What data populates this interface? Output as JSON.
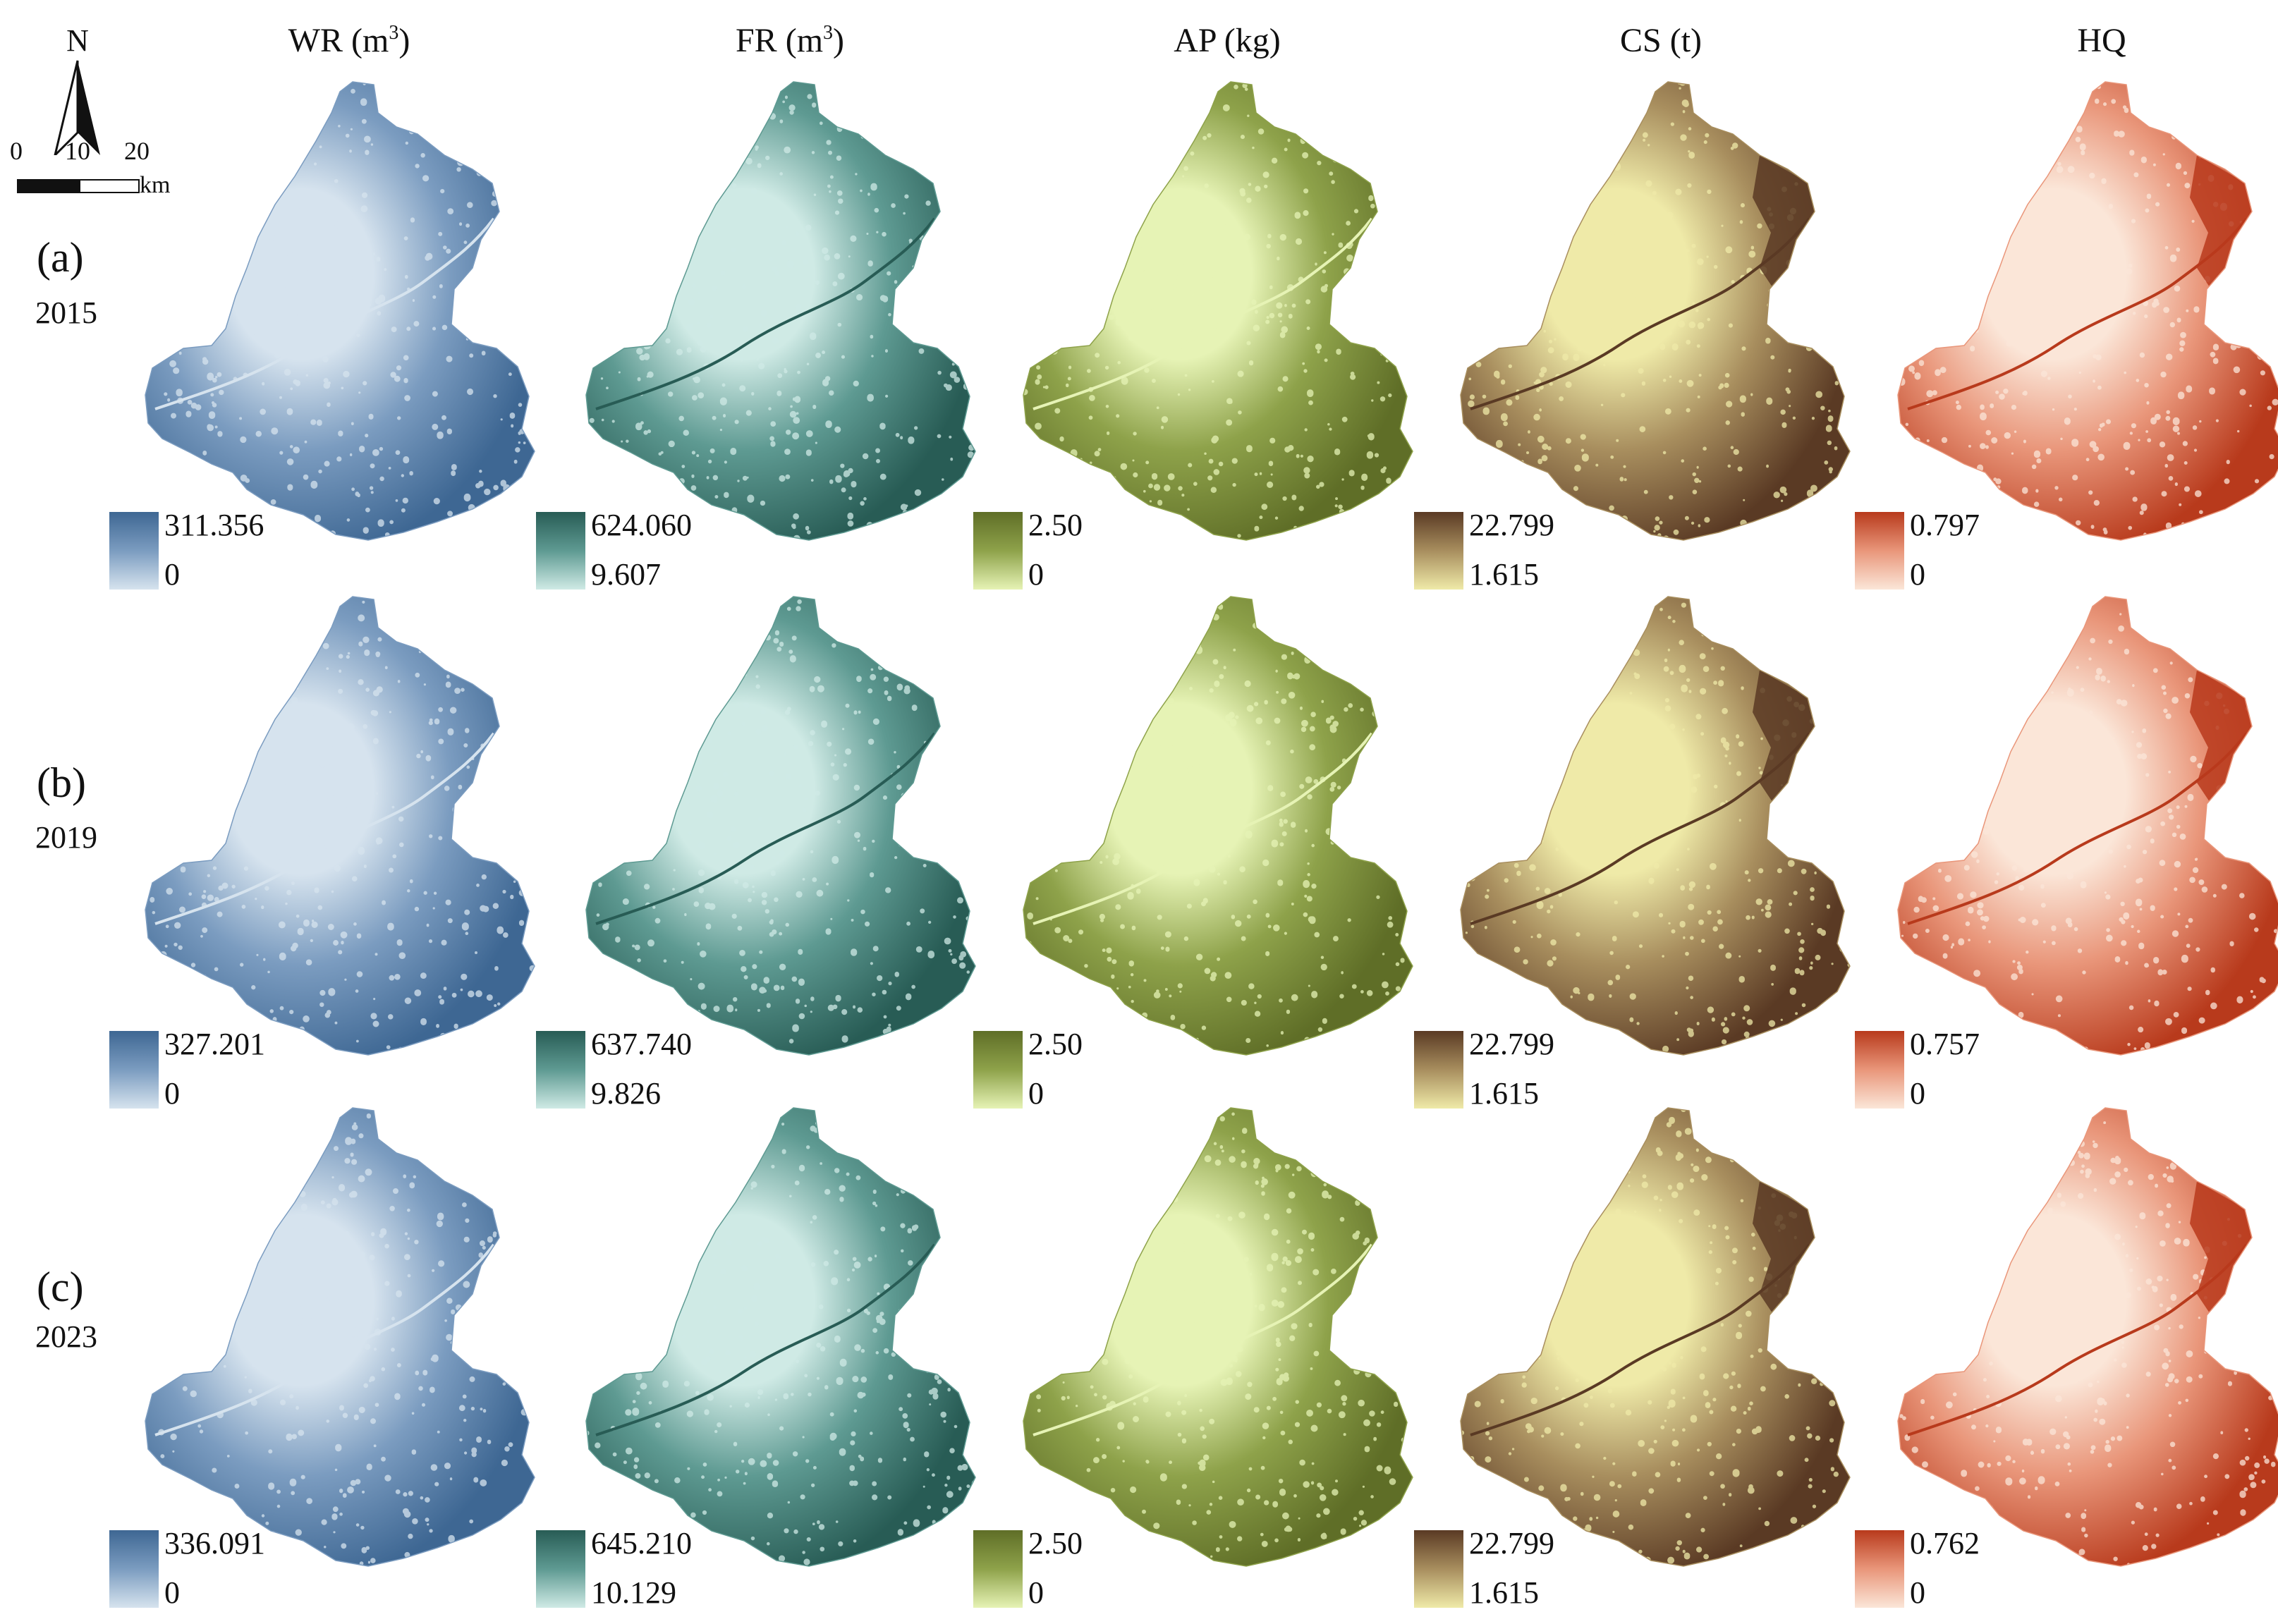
{
  "columns": [
    {
      "key": "wr",
      "name": "WR",
      "unit": " (m",
      "sup": "3",
      "unit_close": ")",
      "colors": {
        "high": "#3e6793",
        "mid": "#7b9cc0",
        "low": "#d6e3ee"
      }
    },
    {
      "key": "fr",
      "name": "FR",
      "unit": " (m",
      "sup": "3",
      "unit_close": ")",
      "colors": {
        "high": "#285c55",
        "mid": "#5e9a92",
        "low": "#cfeae5"
      }
    },
    {
      "key": "ap",
      "name": "AP",
      "unit": " (kg)",
      "sup": "",
      "unit_close": "",
      "colors": {
        "high": "#5f6e27",
        "mid": "#8ea24a",
        "low": "#e6f3b5"
      }
    },
    {
      "key": "cs",
      "name": "CS",
      "unit": " (t)",
      "sup": "",
      "unit_close": "",
      "colors": {
        "high": "#5a3a24",
        "mid": "#a88e5e",
        "low": "#efeaa8"
      }
    },
    {
      "key": "hq",
      "name": "HQ",
      "unit": "",
      "sup": "",
      "unit_close": "",
      "colors": {
        "high": "#b83a1c",
        "mid": "#e9967a",
        "low": "#fbe6d8"
      }
    }
  ],
  "rows": [
    {
      "label": "(a)",
      "year": "2015"
    },
    {
      "label": "(b)",
      "year": "2019"
    },
    {
      "label": "(c)",
      "year": "2023"
    }
  ],
  "legends": [
    [
      {
        "max": "311.356",
        "min": "0"
      },
      {
        "max": "624.060",
        "min": "9.607"
      },
      {
        "max": "2.50",
        "min": "0"
      },
      {
        "max": "22.799",
        "min": "1.615"
      },
      {
        "max": "0.797",
        "min": "0"
      }
    ],
    [
      {
        "max": "327.201",
        "min": "0"
      },
      {
        "max": "637.740",
        "min": "9.826"
      },
      {
        "max": "2.50",
        "min": "0"
      },
      {
        "max": "22.799",
        "min": "1.615"
      },
      {
        "max": "0.757",
        "min": "0"
      }
    ],
    [
      {
        "max": "336.091",
        "min": "0"
      },
      {
        "max": "645.210",
        "min": "10.129"
      },
      {
        "max": "2.50",
        "min": "0"
      },
      {
        "max": "22.799",
        "min": "1.615"
      },
      {
        "max": "0.762",
        "min": "0"
      }
    ]
  ],
  "map_furniture": {
    "north_label": "N",
    "scale_ticks": [
      "0",
      "10",
      "20"
    ],
    "scale_unit": "km"
  }
}
